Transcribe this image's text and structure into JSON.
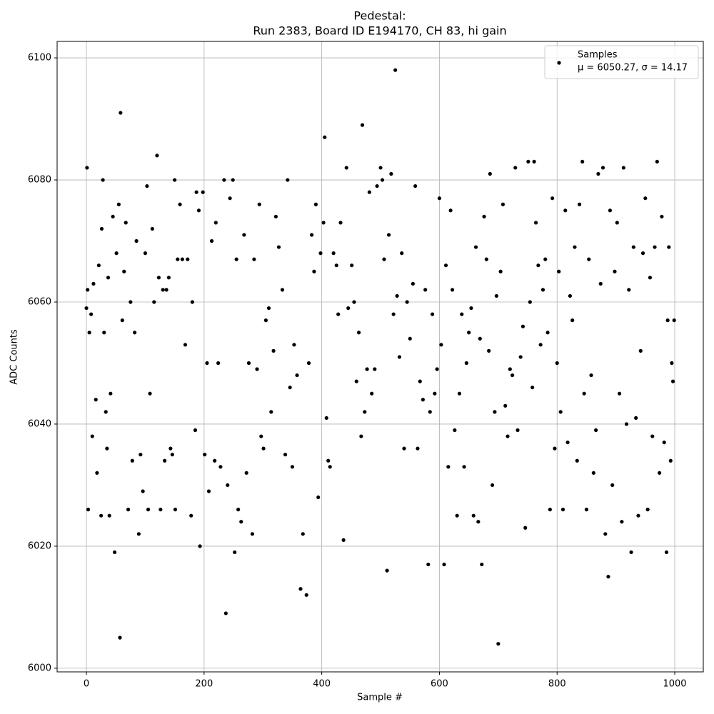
{
  "chart_data": {
    "type": "scatter",
    "title": "Pedestal:",
    "subtitle": "Run 2383, Board ID E194170, CH 83, hi gain",
    "x_label": "Sample #",
    "y_label": "ADC Counts",
    "xlim": [
      -49.8,
      1048.5
    ],
    "xticks": [
      0,
      200,
      400,
      600,
      800,
      1000
    ],
    "ylim": [
      5999.4,
      6102.7
    ],
    "yticks": [
      6000,
      6020,
      6040,
      6060,
      6080,
      6100
    ],
    "grid": true,
    "legend": "upper right",
    "series": [
      {
        "name": "Samples",
        "stats": "μ = 6050.27, σ = 14.17",
        "color": "#000000",
        "x": [
          0,
          1,
          2,
          3,
          5,
          8,
          10,
          12,
          16,
          18,
          21,
          25,
          26,
          28,
          30,
          33,
          35,
          37,
          39,
          41,
          45,
          48,
          51,
          55,
          57,
          58,
          61,
          64,
          67,
          71,
          75,
          78,
          82,
          85,
          89,
          92,
          96,
          100,
          103,
          105,
          108,
          112,
          115,
          120,
          123,
          126,
          130,
          133,
          136,
          140,
          143,
          146,
          150,
          151,
          155,
          159,
          163,
          168,
          172,
          178,
          180,
          185,
          187,
          191,
          193,
          198,
          201,
          205,
          208,
          213,
          218,
          220,
          224,
          228,
          234,
          237,
          240,
          244,
          249,
          252,
          255,
          258,
          263,
          268,
          272,
          276,
          282,
          285,
          290,
          294,
          297,
          301,
          305,
          310,
          314,
          318,
          322,
          327,
          333,
          338,
          342,
          346,
          350,
          353,
          358,
          364,
          368,
          374,
          378,
          383,
          387,
          390,
          394,
          398,
          403,
          405,
          408,
          411,
          414,
          420,
          425,
          428,
          432,
          437,
          442,
          445,
          451,
          455,
          459,
          463,
          467,
          469,
          473,
          477,
          481,
          485,
          490,
          494,
          500,
          503,
          506,
          511,
          514,
          518,
          522,
          525,
          528,
          532,
          536,
          540,
          545,
          550,
          555,
          559,
          563,
          567,
          572,
          576,
          581,
          584,
          588,
          592,
          596,
          600,
          603,
          608,
          611,
          615,
          619,
          622,
          626,
          630,
          634,
          638,
          642,
          646,
          650,
          654,
          658,
          662,
          666,
          669,
          672,
          676,
          680,
          684,
          686,
          690,
          694,
          697,
          700,
          704,
          708,
          712,
          716,
          720,
          724,
          729,
          733,
          738,
          742,
          746,
          751,
          754,
          758,
          761,
          764,
          768,
          772,
          776,
          780,
          784,
          788,
          792,
          796,
          800,
          803,
          806,
          810,
          814,
          818,
          822,
          826,
          830,
          834,
          838,
          843,
          846,
          850,
          854,
          858,
          862,
          866,
          870,
          874,
          878,
          882,
          887,
          890,
          894,
          898,
          902,
          906,
          910,
          913,
          918,
          922,
          926,
          930,
          934,
          938,
          942,
          946,
          950,
          954,
          958,
          962,
          966,
          970,
          974,
          978,
          982,
          986,
          988,
          990,
          993,
          995,
          997,
          999
        ],
        "values": [
          6059,
          6082,
          6062,
          6026,
          6055,
          6058,
          6038,
          6063,
          6044,
          6032,
          6066,
          6025,
          6072,
          6080,
          6055,
          6042,
          6036,
          6064,
          6025,
          6045,
          6074,
          6019,
          6068,
          6076,
          6005,
          6091,
          6057,
          6065,
          6073,
          6026,
          6060,
          6034,
          6055,
          6070,
          6022,
          6035,
          6029,
          6068,
          6079,
          6026,
          6045,
          6072,
          6060,
          6084,
          6064,
          6026,
          6062,
          6034,
          6062,
          6064,
          6036,
          6035,
          6080,
          6026,
          6067,
          6076,
          6067,
          6053,
          6067,
          6025,
          6060,
          6039,
          6078,
          6075,
          6020,
          6078,
          6035,
          6050,
          6029,
          6070,
          6034,
          6073,
          6050,
          6033,
          6080,
          6009,
          6030,
          6077,
          6080,
          6019,
          6067,
          6026,
          6024,
          6071,
          6032,
          6050,
          6022,
          6067,
          6049,
          6076,
          6038,
          6036,
          6057,
          6059,
          6042,
          6052,
          6074,
          6069,
          6062,
          6035,
          6080,
          6046,
          6033,
          6053,
          6048,
          6013,
          6022,
          6012,
          6050,
          6071,
          6065,
          6076,
          6028,
          6068,
          6073,
          6087,
          6041,
          6034,
          6033,
          6068,
          6066,
          6058,
          6073,
          6021,
          6082,
          6059,
          6066,
          6060,
          6047,
          6055,
          6038,
          6089,
          6042,
          6049,
          6078,
          6045,
          6049,
          6079,
          6082,
          6080,
          6067,
          6016,
          6071,
          6081,
          6058,
          6098,
          6061,
          6051,
          6068,
          6036,
          6060,
          6054,
          6063,
          6079,
          6036,
          6047,
          6044,
          6062,
          6017,
          6042,
          6058,
          6045,
          6049,
          6077,
          6053,
          6017,
          6066,
          6033,
          6075,
          6062,
          6039,
          6025,
          6045,
          6058,
          6033,
          6050,
          6055,
          6059,
          6025,
          6069,
          6024,
          6054,
          6017,
          6074,
          6067,
          6052,
          6081,
          6030,
          6042,
          6061,
          6004,
          6065,
          6076,
          6043,
          6038,
          6049,
          6048,
          6082,
          6039,
          6051,
          6056,
          6023,
          6083,
          6060,
          6046,
          6083,
          6073,
          6066,
          6053,
          6062,
          6067,
          6055,
          6026,
          6077,
          6036,
          6050,
          6065,
          6042,
          6026,
          6075,
          6037,
          6061,
          6057,
          6069,
          6034,
          6076,
          6083,
          6045,
          6026,
          6067,
          6048,
          6032,
          6039,
          6081,
          6063,
          6082,
          6022,
          6015,
          6075,
          6030,
          6065,
          6073,
          6045,
          6024,
          6082,
          6040,
          6062,
          6019,
          6069,
          6041,
          6025,
          6052,
          6068,
          6077,
          6026,
          6064,
          6038,
          6069,
          6083,
          6032,
          6074,
          6037,
          6019,
          6057,
          6069,
          6034,
          6050,
          6047,
          6057
        ]
      }
    ]
  }
}
